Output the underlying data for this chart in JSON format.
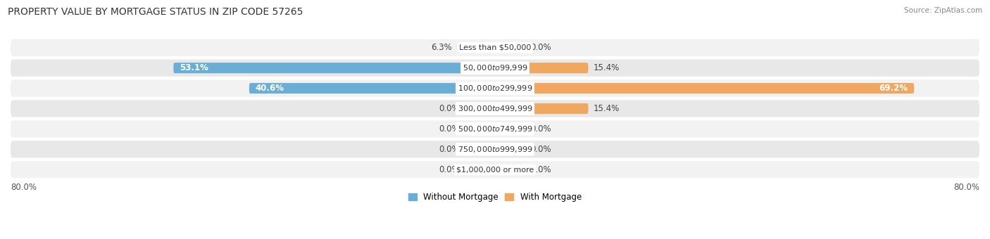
{
  "title": "PROPERTY VALUE BY MORTGAGE STATUS IN ZIP CODE 57265",
  "source": "Source: ZipAtlas.com",
  "categories": [
    "Less than $50,000",
    "$50,000 to $99,999",
    "$100,000 to $299,999",
    "$300,000 to $499,999",
    "$500,000 to $749,999",
    "$750,000 to $999,999",
    "$1,000,000 or more"
  ],
  "without_mortgage": [
    6.3,
    53.1,
    40.6,
    0.0,
    0.0,
    0.0,
    0.0
  ],
  "with_mortgage": [
    0.0,
    15.4,
    69.2,
    15.4,
    0.0,
    0.0,
    0.0
  ],
  "stub_size": 5.0,
  "xlim": [
    -80,
    80
  ],
  "color_without": "#6aaed6",
  "color_with": "#f0a860",
  "color_without_light": "#aacde8",
  "color_with_light": "#f5c990",
  "row_color_odd": "#f2f2f2",
  "row_color_even": "#e8e8e8",
  "title_fontsize": 10,
  "label_fontsize": 8.5,
  "source_fontsize": 7.5
}
